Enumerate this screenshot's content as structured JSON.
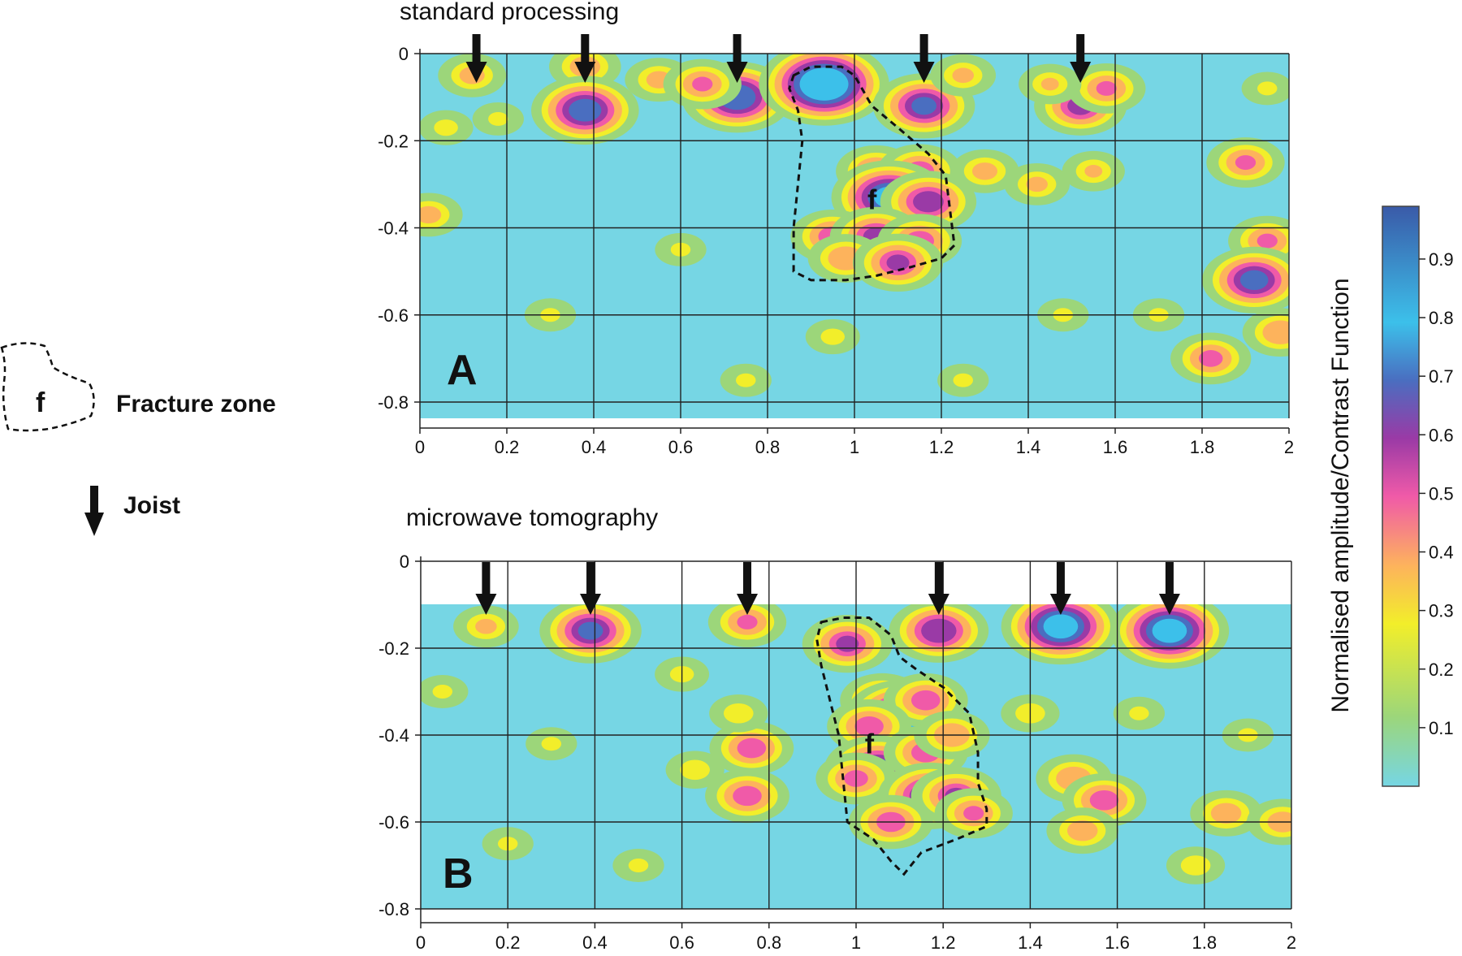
{
  "legend": {
    "fracture_label": "Fracture zone",
    "fracture_letter": "f",
    "joist_label": "Joist"
  },
  "colorbar": {
    "label": "Normalised amplitude/Contrast Function",
    "ticks": [
      "0.1",
      "0.2",
      "0.3",
      "0.4",
      "0.5",
      "0.6",
      "0.7",
      "0.8",
      "0.9"
    ],
    "range": [
      0.0,
      0.99
    ],
    "stops": [
      "#76d6e4",
      "#9cd67a",
      "#f2ee2a",
      "#fdb35c",
      "#f05aa8",
      "#9a3aa6",
      "#4a6ec0",
      "#3cc0ea",
      "#3a5aa8"
    ]
  },
  "chart_data": [
    {
      "type": "heatmap",
      "title": "standard processing",
      "panel_label": "A",
      "fracture_label": "f",
      "xlim": [
        0,
        2
      ],
      "ylim": [
        -0.84,
        0
      ],
      "data_region_ylim": [
        -0.84,
        0
      ],
      "x_ticks": [
        "0",
        "0.2",
        "0.4",
        "0.6",
        "0.8",
        "1",
        "1.2",
        "1.4",
        "1.6",
        "1.8",
        "2"
      ],
      "x_tick_values": [
        0,
        0.2,
        0.4,
        0.6,
        0.8,
        1,
        1.2,
        1.4,
        1.6,
        1.8,
        2
      ],
      "y_ticks": [
        "0",
        "-0.2",
        "-0.4",
        "-0.6",
        "-0.8"
      ],
      "y_tick_values": [
        0,
        -0.2,
        -0.4,
        -0.6,
        -0.8
      ],
      "grid": true,
      "joists_x": [
        0.13,
        0.38,
        0.73,
        1.16,
        1.52
      ],
      "hotspots": [
        {
          "x": 0.12,
          "y": -0.05,
          "v": 0.42
        },
        {
          "x": 0.38,
          "y": -0.03,
          "v": 0.45
        },
        {
          "x": 0.38,
          "y": -0.13,
          "v": 0.75
        },
        {
          "x": 0.55,
          "y": -0.06,
          "v": 0.42
        },
        {
          "x": 0.73,
          "y": -0.1,
          "v": 0.78
        },
        {
          "x": 0.65,
          "y": -0.07,
          "v": 0.5
        },
        {
          "x": 0.93,
          "y": -0.07,
          "v": 0.95
        },
        {
          "x": 1.16,
          "y": -0.12,
          "v": 0.7
        },
        {
          "x": 1.25,
          "y": -0.05,
          "v": 0.4
        },
        {
          "x": 1.52,
          "y": -0.12,
          "v": 0.62
        },
        {
          "x": 1.58,
          "y": -0.08,
          "v": 0.5
        },
        {
          "x": 1.45,
          "y": -0.07,
          "v": 0.38
        },
        {
          "x": 1.95,
          "y": -0.08,
          "v": 0.3
        },
        {
          "x": 1.05,
          "y": -0.27,
          "v": 0.52
        },
        {
          "x": 1.15,
          "y": -0.27,
          "v": 0.55
        },
        {
          "x": 1.08,
          "y": -0.33,
          "v": 0.82
        },
        {
          "x": 1.17,
          "y": -0.34,
          "v": 0.65
        },
        {
          "x": 0.95,
          "y": -0.42,
          "v": 0.55
        },
        {
          "x": 1.05,
          "y": -0.42,
          "v": 0.62
        },
        {
          "x": 1.15,
          "y": -0.43,
          "v": 0.55
        },
        {
          "x": 0.98,
          "y": -0.47,
          "v": 0.48
        },
        {
          "x": 1.1,
          "y": -0.48,
          "v": 0.6
        },
        {
          "x": 1.3,
          "y": -0.27,
          "v": 0.42
        },
        {
          "x": 1.42,
          "y": -0.3,
          "v": 0.4
        },
        {
          "x": 1.55,
          "y": -0.27,
          "v": 0.38
        },
        {
          "x": 1.9,
          "y": -0.25,
          "v": 0.5
        },
        {
          "x": 1.95,
          "y": -0.43,
          "v": 0.5
        },
        {
          "x": 1.92,
          "y": -0.52,
          "v": 0.72
        },
        {
          "x": 1.98,
          "y": -0.64,
          "v": 0.48
        },
        {
          "x": 1.82,
          "y": -0.7,
          "v": 0.52
        },
        {
          "x": 0.02,
          "y": -0.37,
          "v": 0.42
        },
        {
          "x": 0.06,
          "y": -0.17,
          "v": 0.32
        },
        {
          "x": 0.18,
          "y": -0.15,
          "v": 0.3
        },
        {
          "x": 0.6,
          "y": -0.45,
          "v": 0.3
        },
        {
          "x": 0.95,
          "y": -0.65,
          "v": 0.32
        },
        {
          "x": 1.48,
          "y": -0.6,
          "v": 0.3
        },
        {
          "x": 1.7,
          "y": -0.6,
          "v": 0.3
        },
        {
          "x": 0.3,
          "y": -0.6,
          "v": 0.3
        },
        {
          "x": 0.75,
          "y": -0.75,
          "v": 0.3
        },
        {
          "x": 1.25,
          "y": -0.75,
          "v": 0.3
        }
      ],
      "fracture_outline": [
        [
          0.86,
          -0.05
        ],
        [
          0.9,
          -0.03
        ],
        [
          0.97,
          -0.03
        ],
        [
          1.0,
          -0.05
        ],
        [
          1.04,
          -0.12
        ],
        [
          1.1,
          -0.17
        ],
        [
          1.17,
          -0.23
        ],
        [
          1.21,
          -0.28
        ],
        [
          1.22,
          -0.36
        ],
        [
          1.23,
          -0.44
        ],
        [
          1.2,
          -0.47
        ],
        [
          1.13,
          -0.49
        ],
        [
          1.05,
          -0.51
        ],
        [
          0.98,
          -0.52
        ],
        [
          0.9,
          -0.52
        ],
        [
          0.86,
          -0.5
        ],
        [
          0.86,
          -0.4
        ],
        [
          0.87,
          -0.3
        ],
        [
          0.88,
          -0.2
        ],
        [
          0.87,
          -0.13
        ],
        [
          0.85,
          -0.08
        ]
      ]
    },
    {
      "type": "heatmap",
      "title": "microwave tomography",
      "panel_label": "B",
      "fracture_label": "f",
      "xlim": [
        0,
        2
      ],
      "ylim": [
        -0.8,
        0
      ],
      "data_region_ylim": [
        -0.8,
        -0.1
      ],
      "x_ticks": [
        "0",
        "0.2",
        "0.4",
        "0.6",
        "0.8",
        "1",
        "1.2",
        "1.4",
        "1.6",
        "1.8",
        "2"
      ],
      "x_tick_values": [
        0,
        0.2,
        0.4,
        0.6,
        0.8,
        1,
        1.2,
        1.4,
        1.6,
        1.8,
        2
      ],
      "y_ticks": [
        "0",
        "-0.2",
        "-0.4",
        "-0.6",
        "-0.8"
      ],
      "y_tick_values": [
        0,
        -0.2,
        -0.4,
        -0.6,
        -0.8
      ],
      "grid": true,
      "joists_x": [
        0.15,
        0.39,
        0.75,
        1.19,
        1.47,
        1.72
      ],
      "hotspots": [
        {
          "x": 0.15,
          "y": -0.15,
          "v": 0.4
        },
        {
          "x": 0.39,
          "y": -0.16,
          "v": 0.7
        },
        {
          "x": 0.75,
          "y": -0.14,
          "v": 0.5
        },
        {
          "x": 1.19,
          "y": -0.16,
          "v": 0.68
        },
        {
          "x": 1.47,
          "y": -0.15,
          "v": 0.85
        },
        {
          "x": 1.72,
          "y": -0.16,
          "v": 0.85
        },
        {
          "x": 0.98,
          "y": -0.19,
          "v": 0.6
        },
        {
          "x": 1.06,
          "y": -0.32,
          "v": 0.55
        },
        {
          "x": 1.11,
          "y": -0.36,
          "v": 0.85
        },
        {
          "x": 1.16,
          "y": -0.32,
          "v": 0.55
        },
        {
          "x": 1.03,
          "y": -0.38,
          "v": 0.55
        },
        {
          "x": 1.05,
          "y": -0.48,
          "v": 0.75
        },
        {
          "x": 1.0,
          "y": -0.5,
          "v": 0.52
        },
        {
          "x": 1.16,
          "y": -0.44,
          "v": 0.55
        },
        {
          "x": 1.22,
          "y": -0.4,
          "v": 0.48
        },
        {
          "x": 1.17,
          "y": -0.54,
          "v": 0.72
        },
        {
          "x": 1.23,
          "y": -0.54,
          "v": 0.6
        },
        {
          "x": 1.08,
          "y": -0.6,
          "v": 0.55
        },
        {
          "x": 1.27,
          "y": -0.58,
          "v": 0.5
        },
        {
          "x": 0.76,
          "y": -0.43,
          "v": 0.55
        },
        {
          "x": 0.75,
          "y": -0.54,
          "v": 0.55
        },
        {
          "x": 0.73,
          "y": -0.35,
          "v": 0.35
        },
        {
          "x": 0.63,
          "y": -0.48,
          "v": 0.35
        },
        {
          "x": 1.5,
          "y": -0.5,
          "v": 0.48
        },
        {
          "x": 1.57,
          "y": -0.55,
          "v": 0.55
        },
        {
          "x": 1.52,
          "y": -0.62,
          "v": 0.45
        },
        {
          "x": 1.85,
          "y": -0.58,
          "v": 0.45
        },
        {
          "x": 1.98,
          "y": -0.6,
          "v": 0.45
        },
        {
          "x": 1.78,
          "y": -0.7,
          "v": 0.35
        },
        {
          "x": 1.4,
          "y": -0.35,
          "v": 0.35
        },
        {
          "x": 0.6,
          "y": -0.26,
          "v": 0.32
        },
        {
          "x": 0.05,
          "y": -0.3,
          "v": 0.3
        },
        {
          "x": 0.3,
          "y": -0.42,
          "v": 0.3
        },
        {
          "x": 0.2,
          "y": -0.65,
          "v": 0.3
        },
        {
          "x": 0.5,
          "y": -0.7,
          "v": 0.3
        },
        {
          "x": 1.65,
          "y": -0.35,
          "v": 0.3
        },
        {
          "x": 1.9,
          "y": -0.4,
          "v": 0.3
        }
      ],
      "fracture_outline": [
        [
          0.92,
          -0.14
        ],
        [
          0.97,
          -0.13
        ],
        [
          1.03,
          -0.13
        ],
        [
          1.08,
          -0.17
        ],
        [
          1.1,
          -0.22
        ],
        [
          1.14,
          -0.25
        ],
        [
          1.2,
          -0.29
        ],
        [
          1.26,
          -0.35
        ],
        [
          1.28,
          -0.44
        ],
        [
          1.28,
          -0.51
        ],
        [
          1.3,
          -0.57
        ],
        [
          1.3,
          -0.61
        ],
        [
          1.23,
          -0.64
        ],
        [
          1.15,
          -0.67
        ],
        [
          1.11,
          -0.72
        ],
        [
          1.08,
          -0.69
        ],
        [
          1.04,
          -0.64
        ],
        [
          0.98,
          -0.6
        ],
        [
          0.97,
          -0.5
        ],
        [
          0.96,
          -0.4
        ],
        [
          0.94,
          -0.32
        ],
        [
          0.92,
          -0.24
        ],
        [
          0.91,
          -0.18
        ]
      ]
    }
  ]
}
